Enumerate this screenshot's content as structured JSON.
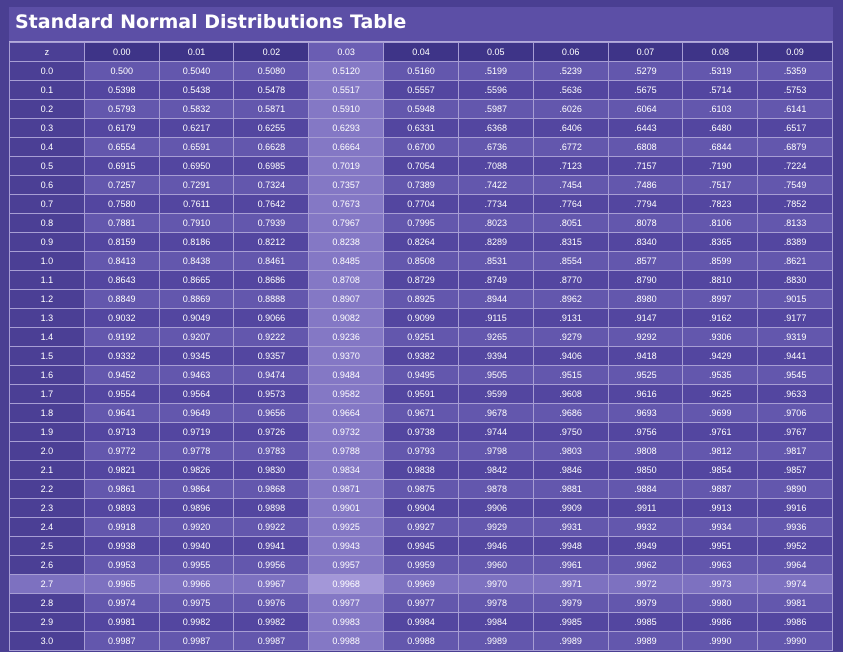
{
  "title": "Standard Normal Distributions Table",
  "header": [
    "z",
    "0.00",
    "0.01",
    "0.02",
    "0.03",
    "0.04",
    "0.05",
    "0.06",
    "0.07",
    "0.08",
    "0.09"
  ],
  "rows": [
    [
      "0.0",
      "0.500",
      "0.5040",
      "0.5080",
      "0.5120",
      "0.5160",
      ".5199",
      ".5239",
      ".5279",
      ".5319",
      ".5359"
    ],
    [
      "0.1",
      "0.5398",
      "0.5438",
      "0.5478",
      "0.5517",
      "0.5557",
      ".5596",
      ".5636",
      ".5675",
      ".5714",
      ".5753"
    ],
    [
      "0.2",
      "0.5793",
      "0.5832",
      "0.5871",
      "0.5910",
      "0.5948",
      ".5987",
      ".6026",
      ".6064",
      ".6103",
      ".6141"
    ],
    [
      "0.3",
      "0.6179",
      "0.6217",
      "0.6255",
      "0.6293",
      "0.6331",
      ".6368",
      ".6406",
      ".6443",
      ".6480",
      ".6517"
    ],
    [
      "0.4",
      "0.6554",
      "0.6591",
      "0.6628",
      "0.6664",
      "0.6700",
      ".6736",
      ".6772",
      ".6808",
      ".6844",
      ".6879"
    ],
    [
      "0.5",
      "0.6915",
      "0.6950",
      "0.6985",
      "0.7019",
      "0.7054",
      ".7088",
      ".7123",
      ".7157",
      ".7190",
      ".7224"
    ],
    [
      "0.6",
      "0.7257",
      "0.7291",
      "0.7324",
      "0.7357",
      "0.7389",
      ".7422",
      ".7454",
      ".7486",
      ".7517",
      ".7549"
    ],
    [
      "0.7",
      "0.7580",
      "0.7611",
      "0.7642",
      "0.7673",
      "0.7704",
      ".7734",
      ".7764",
      ".7794",
      ".7823",
      ".7852"
    ],
    [
      "0.8",
      "0.7881",
      "0.7910",
      "0.7939",
      "0.7967",
      "0.7995",
      ".8023",
      ".8051",
      ".8078",
      ".8106",
      ".8133"
    ],
    [
      "0.9",
      "0.8159",
      "0.8186",
      "0.8212",
      "0.8238",
      "0.8264",
      ".8289",
      ".8315",
      ".8340",
      ".8365",
      ".8389"
    ],
    [
      "1.0",
      "0.8413",
      "0.8438",
      "0.8461",
      "0.8485",
      "0.8508",
      ".8531",
      ".8554",
      ".8577",
      ".8599",
      ".8621"
    ],
    [
      "1.1",
      "0.8643",
      "0.8665",
      "0.8686",
      "0.8708",
      "0.8729",
      ".8749",
      ".8770",
      ".8790",
      ".8810",
      ".8830"
    ],
    [
      "1.2",
      "0.8849",
      "0.8869",
      "0.8888",
      "0.8907",
      "0.8925",
      ".8944",
      ".8962",
      ".8980",
      ".8997",
      ".9015"
    ],
    [
      "1.3",
      "0.9032",
      "0.9049",
      "0.9066",
      "0.9082",
      "0.9099",
      ".9115",
      ".9131",
      ".9147",
      ".9162",
      ".9177"
    ],
    [
      "1.4",
      "0.9192",
      "0.9207",
      "0.9222",
      "0.9236",
      "0.9251",
      ".9265",
      ".9279",
      ".9292",
      ".9306",
      ".9319"
    ],
    [
      "1.5",
      "0.9332",
      "0.9345",
      "0.9357",
      "0.9370",
      "0.9382",
      ".9394",
      ".9406",
      ".9418",
      ".9429",
      ".9441"
    ],
    [
      "1.6",
      "0.9452",
      "0.9463",
      "0.9474",
      "0.9484",
      "0.9495",
      ".9505",
      ".9515",
      ".9525",
      ".9535",
      ".9545"
    ],
    [
      "1.7",
      "0.9554",
      "0.9564",
      "0.9573",
      "0.9582",
      "0.9591",
      ".9599",
      ".9608",
      ".9616",
      ".9625",
      ".9633"
    ],
    [
      "1.8",
      "0.9641",
      "0.9649",
      "0.9656",
      "0.9664",
      "0.9671",
      ".9678",
      ".9686",
      ".9693",
      ".9699",
      ".9706"
    ],
    [
      "1.9",
      "0.9713",
      "0.9719",
      "0.9726",
      "0.9732",
      "0.9738",
      ".9744",
      ".9750",
      ".9756",
      ".9761",
      ".9767"
    ],
    [
      "2.0",
      "0.9772",
      "0.9778",
      "0.9783",
      "0.9788",
      "0.9793",
      ".9798",
      ".9803",
      ".9808",
      ".9812",
      ".9817"
    ],
    [
      "2.1",
      "0.9821",
      "0.9826",
      "0.9830",
      "0.9834",
      "0.9838",
      ".9842",
      ".9846",
      ".9850",
      ".9854",
      ".9857"
    ],
    [
      "2.2",
      "0.9861",
      "0.9864",
      "0.9868",
      "0.9871",
      "0.9875",
      ".9878",
      ".9881",
      ".9884",
      ".9887",
      ".9890"
    ],
    [
      "2.3",
      "0.9893",
      "0.9896",
      "0.9898",
      "0.9901",
      "0.9904",
      ".9906",
      ".9909",
      ".9911",
      ".9913",
      ".9916"
    ],
    [
      "2.4",
      "0.9918",
      "0.9920",
      "0.9922",
      "0.9925",
      "0.9927",
      ".9929",
      ".9931",
      ".9932",
      ".9934",
      ".9936"
    ],
    [
      "2.5",
      "0.9938",
      "0.9940",
      "0.9941",
      "0.9943",
      "0.9945",
      ".9946",
      ".9948",
      ".9949",
      ".9951",
      ".9952"
    ],
    [
      "2.6",
      "0.9953",
      "0.9955",
      "0.9956",
      "0.9957",
      "0.9959",
      ".9960",
      ".9961",
      ".9962",
      ".9963",
      ".9964"
    ],
    [
      "2.7",
      "0.9965",
      "0.9966",
      "0.9967",
      "0.9968",
      "0.9969",
      ".9970",
      ".9971",
      ".9972",
      ".9973",
      ".9974"
    ],
    [
      "2.8",
      "0.9974",
      "0.9975",
      "0.9976",
      "0.9977",
      "0.9977",
      ".9978",
      ".9979",
      ".9979",
      ".9980",
      ".9981"
    ],
    [
      "2.9",
      "0.9981",
      "0.9982",
      "0.9982",
      "0.9983",
      "0.9984",
      ".9984",
      ".9985",
      ".9985",
      ".9986",
      ".9986"
    ],
    [
      "3.0",
      "0.9987",
      "0.9987",
      "0.9987",
      "0.9988",
      "0.9988",
      ".9989",
      ".9989",
      ".9989",
      ".9990",
      ".9990"
    ]
  ],
  "highlight": {
    "column": "0.03",
    "row": "2.7"
  },
  "colors": {
    "background": "#4a3f92",
    "row_dark": "#5346a0",
    "row_light": "#6357ad",
    "highlight": "#8478c5",
    "grid_line": "#a79ed4",
    "text": "#ffffff"
  }
}
